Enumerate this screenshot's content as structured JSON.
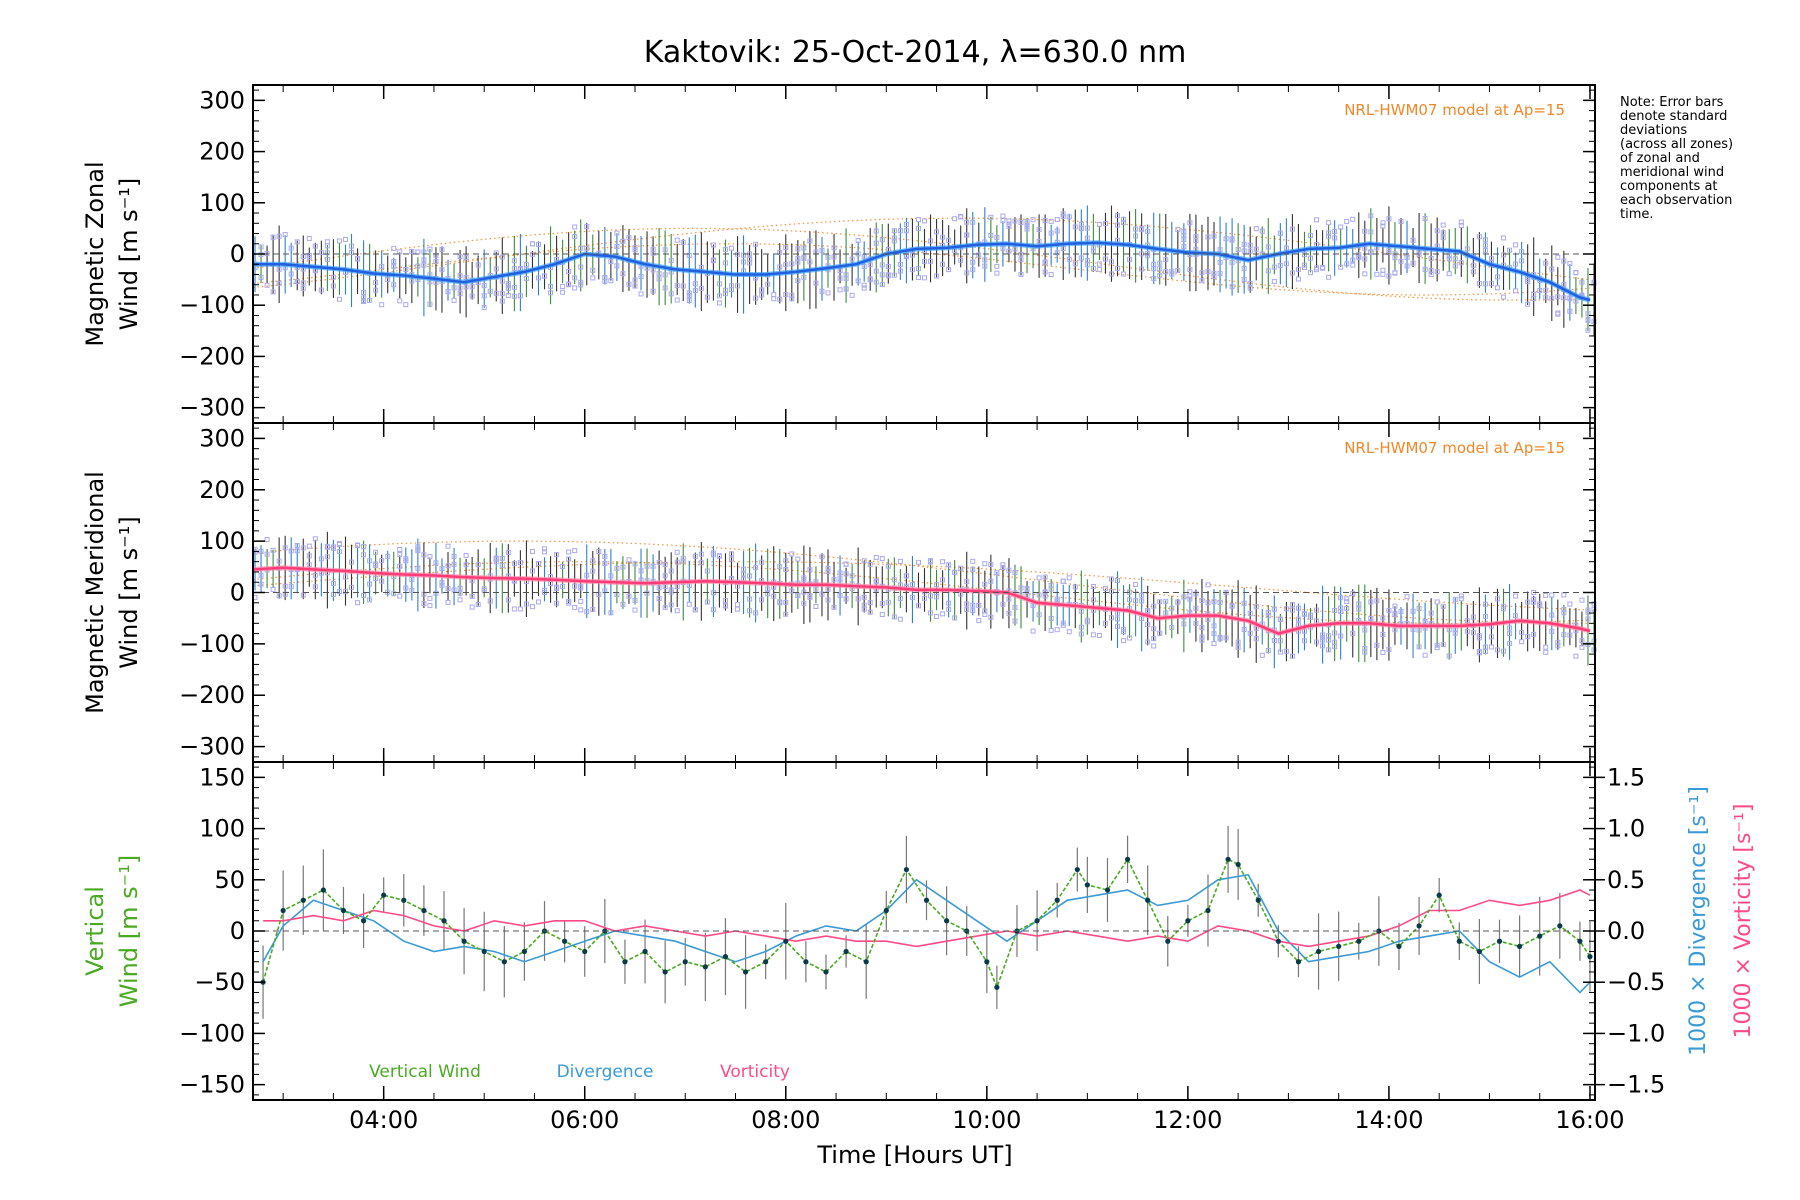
{
  "title": "Kaktovik: 25-Oct-2014, λ=630.0 nm",
  "note": "Note: Error bars\ndenote standard\ndeviations\n(across all zones)\nof zonal and\nmeridional wind\ncomponents at\neach observation\ntime.",
  "colors": {
    "zonal": "#1f5fe0",
    "zonal_light": "#3aa0ff",
    "meridional": "#ff3c78",
    "vertical": "#4aaa22",
    "divergence": "#3a9ad6",
    "vorticity": "#ff4a88",
    "model": "#f0882a",
    "scatter": "#aaaaee",
    "errorbar": "#333333"
  },
  "chart_data": [
    {
      "type": "line",
      "title": "Kaktovik: 25-Oct-2014, λ=630.0 nm",
      "ylabel_line1": "Magnetic Zonal",
      "ylabel_line2": "Wind [m s⁻¹]",
      "xlim": [
        2.7,
        16.05
      ],
      "ylim": [
        -330,
        330
      ],
      "yticks": [
        -300,
        -200,
        -100,
        0,
        100,
        200,
        300
      ],
      "annotation": "NRL-HWM07 model at Ap=15",
      "series": [
        {
          "x": [
            2.7,
            3.0,
            3.3,
            3.6,
            3.9,
            4.2,
            4.5,
            4.8,
            5.1,
            5.4,
            5.7,
            6.0,
            6.3,
            6.6,
            6.9,
            7.2,
            7.5,
            7.8,
            8.1,
            8.4,
            8.7,
            9.0,
            9.3,
            9.6,
            9.9,
            10.2,
            10.5,
            10.8,
            11.1,
            11.4,
            11.7,
            12.0,
            12.3,
            12.6,
            12.9,
            13.2,
            13.5,
            13.8,
            14.1,
            14.4,
            14.7,
            15.0,
            15.3,
            15.6,
            15.9,
            16.0
          ],
          "values": [
            -20,
            -20,
            -25,
            -30,
            -38,
            -42,
            -48,
            -55,
            -45,
            -35,
            -20,
            0,
            -5,
            -20,
            -30,
            -35,
            -40,
            -40,
            -35,
            -28,
            -20,
            0,
            10,
            12,
            18,
            20,
            15,
            20,
            22,
            18,
            10,
            3,
            0,
            -12,
            0,
            10,
            12,
            20,
            15,
            10,
            5,
            -20,
            -35,
            -55,
            -85,
            -90
          ]
        }
      ]
    },
    {
      "type": "line",
      "ylabel_line1": "Magnetic Meridional",
      "ylabel_line2": "Wind [m s⁻¹]",
      "xlim": [
        2.7,
        16.05
      ],
      "ylim": [
        -330,
        330
      ],
      "yticks": [
        -300,
        -200,
        -100,
        0,
        100,
        200,
        300
      ],
      "annotation": "NRL-HWM07 model at Ap=15",
      "series": [
        {
          "x": [
            2.7,
            3.0,
            3.3,
            3.6,
            3.9,
            4.2,
            4.5,
            4.8,
            5.1,
            5.4,
            5.7,
            6.0,
            6.3,
            6.6,
            6.9,
            7.2,
            7.5,
            7.8,
            8.1,
            8.4,
            8.7,
            9.0,
            9.3,
            9.6,
            9.9,
            10.2,
            10.5,
            10.8,
            11.1,
            11.4,
            11.7,
            12.0,
            12.3,
            12.6,
            12.9,
            13.2,
            13.5,
            13.8,
            14.1,
            14.4,
            14.7,
            15.0,
            15.3,
            15.6,
            15.9,
            16.0
          ],
          "values": [
            45,
            48,
            45,
            42,
            38,
            35,
            33,
            30,
            28,
            27,
            25,
            22,
            20,
            18,
            20,
            22,
            20,
            18,
            15,
            15,
            12,
            10,
            5,
            5,
            3,
            0,
            -20,
            -25,
            -30,
            -35,
            -50,
            -45,
            -45,
            -55,
            -80,
            -65,
            -60,
            -60,
            -65,
            -65,
            -65,
            -62,
            -55,
            -60,
            -70,
            -75
          ]
        }
      ]
    },
    {
      "type": "line",
      "ylabel_line1": "Vertical",
      "ylabel_line2": "Wind [m s⁻¹]",
      "y2label_divergence": "1000 × Divergence [s⁻¹]",
      "y2label_vorticity": "1000 × Vorticity [s⁻¹]",
      "xlabel": "Time [Hours UT]",
      "xlim": [
        2.7,
        16.05
      ],
      "xticks": [
        4,
        6,
        8,
        10,
        12,
        14,
        16
      ],
      "xticklabels": [
        "04:00",
        "06:00",
        "08:00",
        "10:00",
        "12:00",
        "14:00",
        "16:00"
      ],
      "ylim": [
        -165,
        165
      ],
      "yticks": [
        -150,
        -100,
        -50,
        0,
        50,
        100,
        150
      ],
      "y2lim": [
        -1.65,
        1.65
      ],
      "y2ticks": [
        -1.5,
        -1.0,
        -0.5,
        0.0,
        0.5,
        1.0,
        1.5
      ],
      "y2ticklabels": [
        "-1.5",
        "-1.0",
        "-0.5",
        "0.0",
        "0.5",
        "1.0",
        "1.5"
      ],
      "legend": [
        "Vertical Wind",
        "Divergence",
        "Vorticity"
      ],
      "series": [
        {
          "name": "Vertical Wind",
          "x": [
            2.8,
            3.0,
            3.2,
            3.4,
            3.6,
            3.8,
            4.0,
            4.2,
            4.4,
            4.6,
            4.8,
            5.0,
            5.2,
            5.4,
            5.6,
            5.8,
            6.0,
            6.2,
            6.4,
            6.6,
            6.8,
            7.0,
            7.2,
            7.4,
            7.6,
            7.8,
            8.0,
            8.2,
            8.4,
            8.6,
            8.8,
            9.0,
            9.2,
            9.4,
            9.6,
            9.8,
            10.0,
            10.1,
            10.3,
            10.5,
            10.7,
            10.9,
            11.0,
            11.2,
            11.4,
            11.6,
            11.8,
            12.0,
            12.2,
            12.4,
            12.5,
            12.7,
            12.9,
            13.1,
            13.3,
            13.5,
            13.7,
            13.9,
            14.1,
            14.3,
            14.5,
            14.7,
            14.9,
            15.1,
            15.3,
            15.5,
            15.7,
            15.9,
            16.0
          ],
          "values": [
            -50,
            20,
            30,
            40,
            20,
            10,
            35,
            30,
            20,
            10,
            -10,
            -20,
            -30,
            -20,
            0,
            -10,
            -20,
            0,
            -30,
            -20,
            -40,
            -30,
            -35,
            -25,
            -40,
            -30,
            -10,
            -30,
            -40,
            -20,
            -30,
            20,
            60,
            30,
            10,
            0,
            -30,
            -55,
            0,
            10,
            30,
            60,
            45,
            40,
            70,
            30,
            -10,
            10,
            20,
            70,
            65,
            30,
            -10,
            -30,
            -20,
            -15,
            -10,
            0,
            -15,
            5,
            35,
            -10,
            -20,
            -10,
            -15,
            -5,
            5,
            -10,
            -25
          ]
        },
        {
          "name": "Divergence",
          "x": [
            2.8,
            3.0,
            3.3,
            3.6,
            3.9,
            4.2,
            4.5,
            4.8,
            5.1,
            5.4,
            5.7,
            6.0,
            6.3,
            6.6,
            6.9,
            7.2,
            7.5,
            7.8,
            8.1,
            8.4,
            8.7,
            9.0,
            9.3,
            9.6,
            9.9,
            10.2,
            10.5,
            10.8,
            11.1,
            11.4,
            11.7,
            12.0,
            12.3,
            12.6,
            12.9,
            13.2,
            13.5,
            13.8,
            14.1,
            14.4,
            14.7,
            15.0,
            15.3,
            15.6,
            15.9,
            16.0
          ],
          "values": [
            -0.3,
            0.05,
            0.3,
            0.2,
            0.1,
            -0.1,
            -0.2,
            -0.15,
            -0.2,
            -0.3,
            -0.2,
            -0.1,
            0.0,
            -0.05,
            -0.1,
            -0.2,
            -0.3,
            -0.2,
            -0.05,
            0.05,
            0.0,
            0.2,
            0.5,
            0.3,
            0.1,
            -0.1,
            0.1,
            0.3,
            0.35,
            0.4,
            0.25,
            0.3,
            0.5,
            0.55,
            0.0,
            -0.3,
            -0.25,
            -0.2,
            -0.1,
            -0.05,
            0.0,
            -0.3,
            -0.45,
            -0.3,
            -0.6,
            -0.5
          ]
        },
        {
          "name": "Vorticity",
          "x": [
            2.8,
            3.0,
            3.3,
            3.6,
            3.9,
            4.2,
            4.5,
            4.8,
            5.1,
            5.4,
            5.7,
            6.0,
            6.3,
            6.6,
            6.9,
            7.2,
            7.5,
            7.8,
            8.1,
            8.4,
            8.7,
            9.0,
            9.3,
            9.6,
            9.9,
            10.2,
            10.5,
            10.8,
            11.1,
            11.4,
            11.7,
            12.0,
            12.3,
            12.6,
            12.9,
            13.2,
            13.5,
            13.8,
            14.1,
            14.4,
            14.7,
            15.0,
            15.3,
            15.6,
            15.9,
            16.0
          ],
          "values": [
            0.1,
            0.1,
            0.15,
            0.1,
            0.2,
            0.15,
            0.05,
            0.0,
            0.1,
            0.05,
            0.1,
            0.1,
            0.0,
            0.05,
            0.0,
            -0.05,
            0.0,
            -0.05,
            -0.1,
            -0.05,
            -0.1,
            -0.1,
            -0.15,
            -0.1,
            -0.05,
            0.0,
            -0.05,
            0.0,
            -0.05,
            -0.1,
            -0.05,
            -0.1,
            0.05,
            0.0,
            -0.1,
            -0.15,
            -0.1,
            -0.05,
            0.05,
            0.2,
            0.2,
            0.3,
            0.25,
            0.3,
            0.4,
            0.35
          ]
        }
      ]
    }
  ]
}
